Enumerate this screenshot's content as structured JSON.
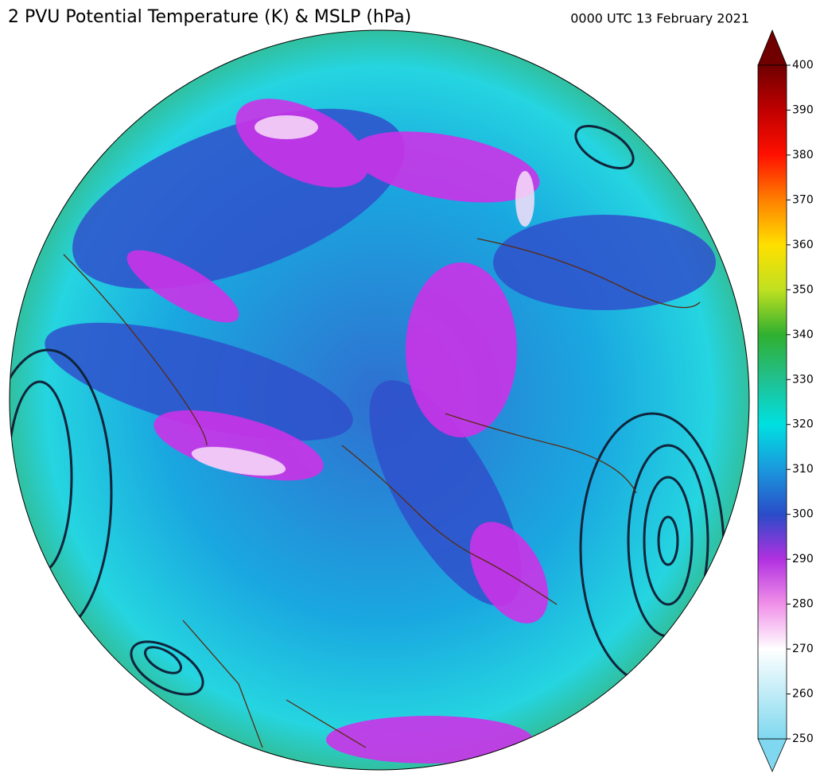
{
  "title": "2 PVU Potential Temperature (K) & MSLP (hPa)",
  "valid_time": "0000 UTC 13 February 2021",
  "colorbar": {
    "range": [
      250,
      400
    ],
    "ticks": [
      250,
      260,
      270,
      280,
      290,
      300,
      310,
      320,
      330,
      340,
      350,
      360,
      370,
      380,
      390,
      400
    ]
  }
}
